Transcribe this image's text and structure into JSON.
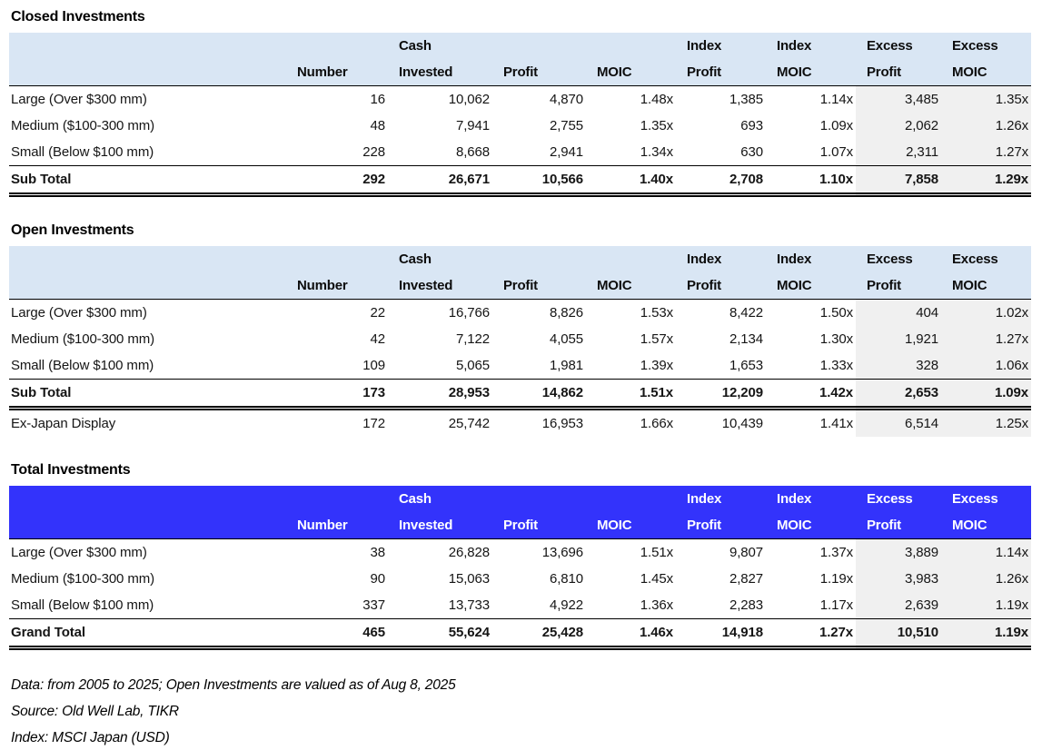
{
  "colors": {
    "subheader_bg_light": "#D9E6F4",
    "subheader_bg_accent": "#3333FB",
    "subheader_text_accent": "#FFFFFF",
    "excess_columns_bg": "#F0F0F0",
    "rule_color": "#000000"
  },
  "tables": [
    {
      "title": "Closed Investments",
      "header_style": "light",
      "headers": [
        {
          "line1": "",
          "line2": ""
        },
        {
          "line1": "",
          "line2": "Number"
        },
        {
          "line1": "Cash",
          "line2": "Invested"
        },
        {
          "line1": "",
          "line2": "Profit"
        },
        {
          "line1": "",
          "line2": "MOIC"
        },
        {
          "line1": "Index",
          "line2": "Profit"
        },
        {
          "line1": "Index",
          "line2": "MOIC"
        },
        {
          "line1": "Excess",
          "line2": "Profit"
        },
        {
          "line1": "Excess",
          "line2": "MOIC"
        }
      ],
      "rows": [
        {
          "label": "Large (Over $300 mm)",
          "values": [
            "16",
            "10,062",
            "4,870",
            "1.48x",
            "1,385",
            "1.14x",
            "3,485",
            "1.35x"
          ],
          "emphasis": false
        },
        {
          "label": "Medium ($100-300 mm)",
          "values": [
            "48",
            "7,941",
            "2,755",
            "1.35x",
            "693",
            "1.09x",
            "2,062",
            "1.26x"
          ],
          "emphasis": false
        },
        {
          "label": "Small (Below $100 mm)",
          "values": [
            "228",
            "8,668",
            "2,941",
            "1.34x",
            "630",
            "1.07x",
            "2,311",
            "1.27x"
          ],
          "emphasis": false
        },
        {
          "label": "Sub Total",
          "values": [
            "292",
            "26,671",
            "10,566",
            "1.40x",
            "2,708",
            "1.10x",
            "7,858",
            "1.29x"
          ],
          "emphasis": true
        }
      ]
    },
    {
      "title": "Open Investments",
      "header_style": "light",
      "headers": [
        {
          "line1": "",
          "line2": ""
        },
        {
          "line1": "",
          "line2": "Number"
        },
        {
          "line1": "Cash",
          "line2": "Invested"
        },
        {
          "line1": "",
          "line2": "Profit"
        },
        {
          "line1": "",
          "line2": "MOIC"
        },
        {
          "line1": "Index",
          "line2": "Profit"
        },
        {
          "line1": "Index",
          "line2": "MOIC"
        },
        {
          "line1": "Excess",
          "line2": "Profit"
        },
        {
          "line1": "Excess",
          "line2": "MOIC"
        }
      ],
      "rows": [
        {
          "label": "Large (Over $300 mm)",
          "values": [
            "22",
            "16,766",
            "8,826",
            "1.53x",
            "8,422",
            "1.50x",
            "404",
            "1.02x"
          ],
          "emphasis": false
        },
        {
          "label": "Medium ($100-300 mm)",
          "values": [
            "42",
            "7,122",
            "4,055",
            "1.57x",
            "2,134",
            "1.30x",
            "1,921",
            "1.27x"
          ],
          "emphasis": false
        },
        {
          "label": "Small (Below $100 mm)",
          "values": [
            "109",
            "5,065",
            "1,981",
            "1.39x",
            "1,653",
            "1.33x",
            "328",
            "1.06x"
          ],
          "emphasis": false
        },
        {
          "label": "Sub Total",
          "values": [
            "173",
            "28,953",
            "14,862",
            "1.51x",
            "12,209",
            "1.42x",
            "2,653",
            "1.09x"
          ],
          "emphasis": true
        },
        {
          "label": "Ex-Japan Display",
          "values": [
            "172",
            "25,742",
            "16,953",
            "1.66x",
            "10,439",
            "1.41x",
            "6,514",
            "1.25x"
          ],
          "emphasis": false
        }
      ]
    },
    {
      "title": "Total Investments",
      "header_style": "accent",
      "headers": [
        {
          "line1": "",
          "line2": ""
        },
        {
          "line1": "",
          "line2": "Number"
        },
        {
          "line1": "Cash",
          "line2": "Invested"
        },
        {
          "line1": "",
          "line2": "Profit"
        },
        {
          "line1": "",
          "line2": "MOIC"
        },
        {
          "line1": "Index",
          "line2": "Profit"
        },
        {
          "line1": "Index",
          "line2": "MOIC"
        },
        {
          "line1": "Excess",
          "line2": "Profit"
        },
        {
          "line1": "Excess",
          "line2": "MOIC"
        }
      ],
      "rows": [
        {
          "label": "Large (Over $300 mm)",
          "values": [
            "38",
            "26,828",
            "13,696",
            "1.51x",
            "9,807",
            "1.37x",
            "3,889",
            "1.14x"
          ],
          "emphasis": false
        },
        {
          "label": "Medium ($100-300 mm)",
          "values": [
            "90",
            "15,063",
            "6,810",
            "1.45x",
            "2,827",
            "1.19x",
            "3,983",
            "1.26x"
          ],
          "emphasis": false
        },
        {
          "label": "Small (Below $100 mm)",
          "values": [
            "337",
            "13,733",
            "4,922",
            "1.36x",
            "2,283",
            "1.17x",
            "2,639",
            "1.19x"
          ],
          "emphasis": false
        },
        {
          "label": "Grand Total",
          "values": [
            "465",
            "55,624",
            "25,428",
            "1.46x",
            "14,918",
            "1.27x",
            "10,510",
            "1.19x"
          ],
          "emphasis": true
        }
      ]
    }
  ],
  "footnotes": [
    "Data: from 2005 to 2025; Open Investments are valued as of Aug 8, 2025",
    "Source: Old Well Lab, TIKR",
    "Index: MSCI Japan (USD)"
  ]
}
